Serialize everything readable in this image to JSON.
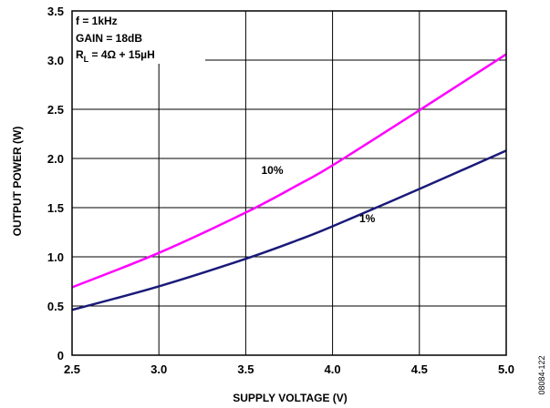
{
  "chart_data": {
    "type": "line",
    "xlabel": "SUPPLY VOLTAGE (V)",
    "ylabel": "OUTPUT POWER (W)",
    "xlim": [
      2.5,
      5.0
    ],
    "ylim": [
      0,
      3.5
    ],
    "xticks": [
      "2.5",
      "3.0",
      "3.5",
      "4.0",
      "4.5",
      "5.0"
    ],
    "yticks": [
      "0",
      "0.5",
      "1.0",
      "1.5",
      "2.0",
      "2.5",
      "3.0",
      "3.5"
    ],
    "grid": true,
    "conditions": {
      "line1": "f = 1kHz",
      "line2": "GAIN = 18dB",
      "line3_prefix": "R",
      "line3_sub": "L",
      "line3_suffix": " = 4Ω + 15µH"
    },
    "series": [
      {
        "name": "10%",
        "color": "#ff00ff",
        "x": [
          2.5,
          3.0,
          3.5,
          3.8,
          4.0,
          4.5,
          5.0
        ],
        "y": [
          0.69,
          1.04,
          1.45,
          1.73,
          1.93,
          2.49,
          3.06
        ]
      },
      {
        "name": "1%",
        "color": "#1a1a7a",
        "x": [
          2.5,
          3.0,
          3.5,
          3.8,
          4.0,
          4.5,
          5.0
        ],
        "y": [
          0.46,
          0.7,
          0.98,
          1.17,
          1.31,
          1.69,
          2.08
        ]
      }
    ],
    "figure_id": "08084-122"
  }
}
